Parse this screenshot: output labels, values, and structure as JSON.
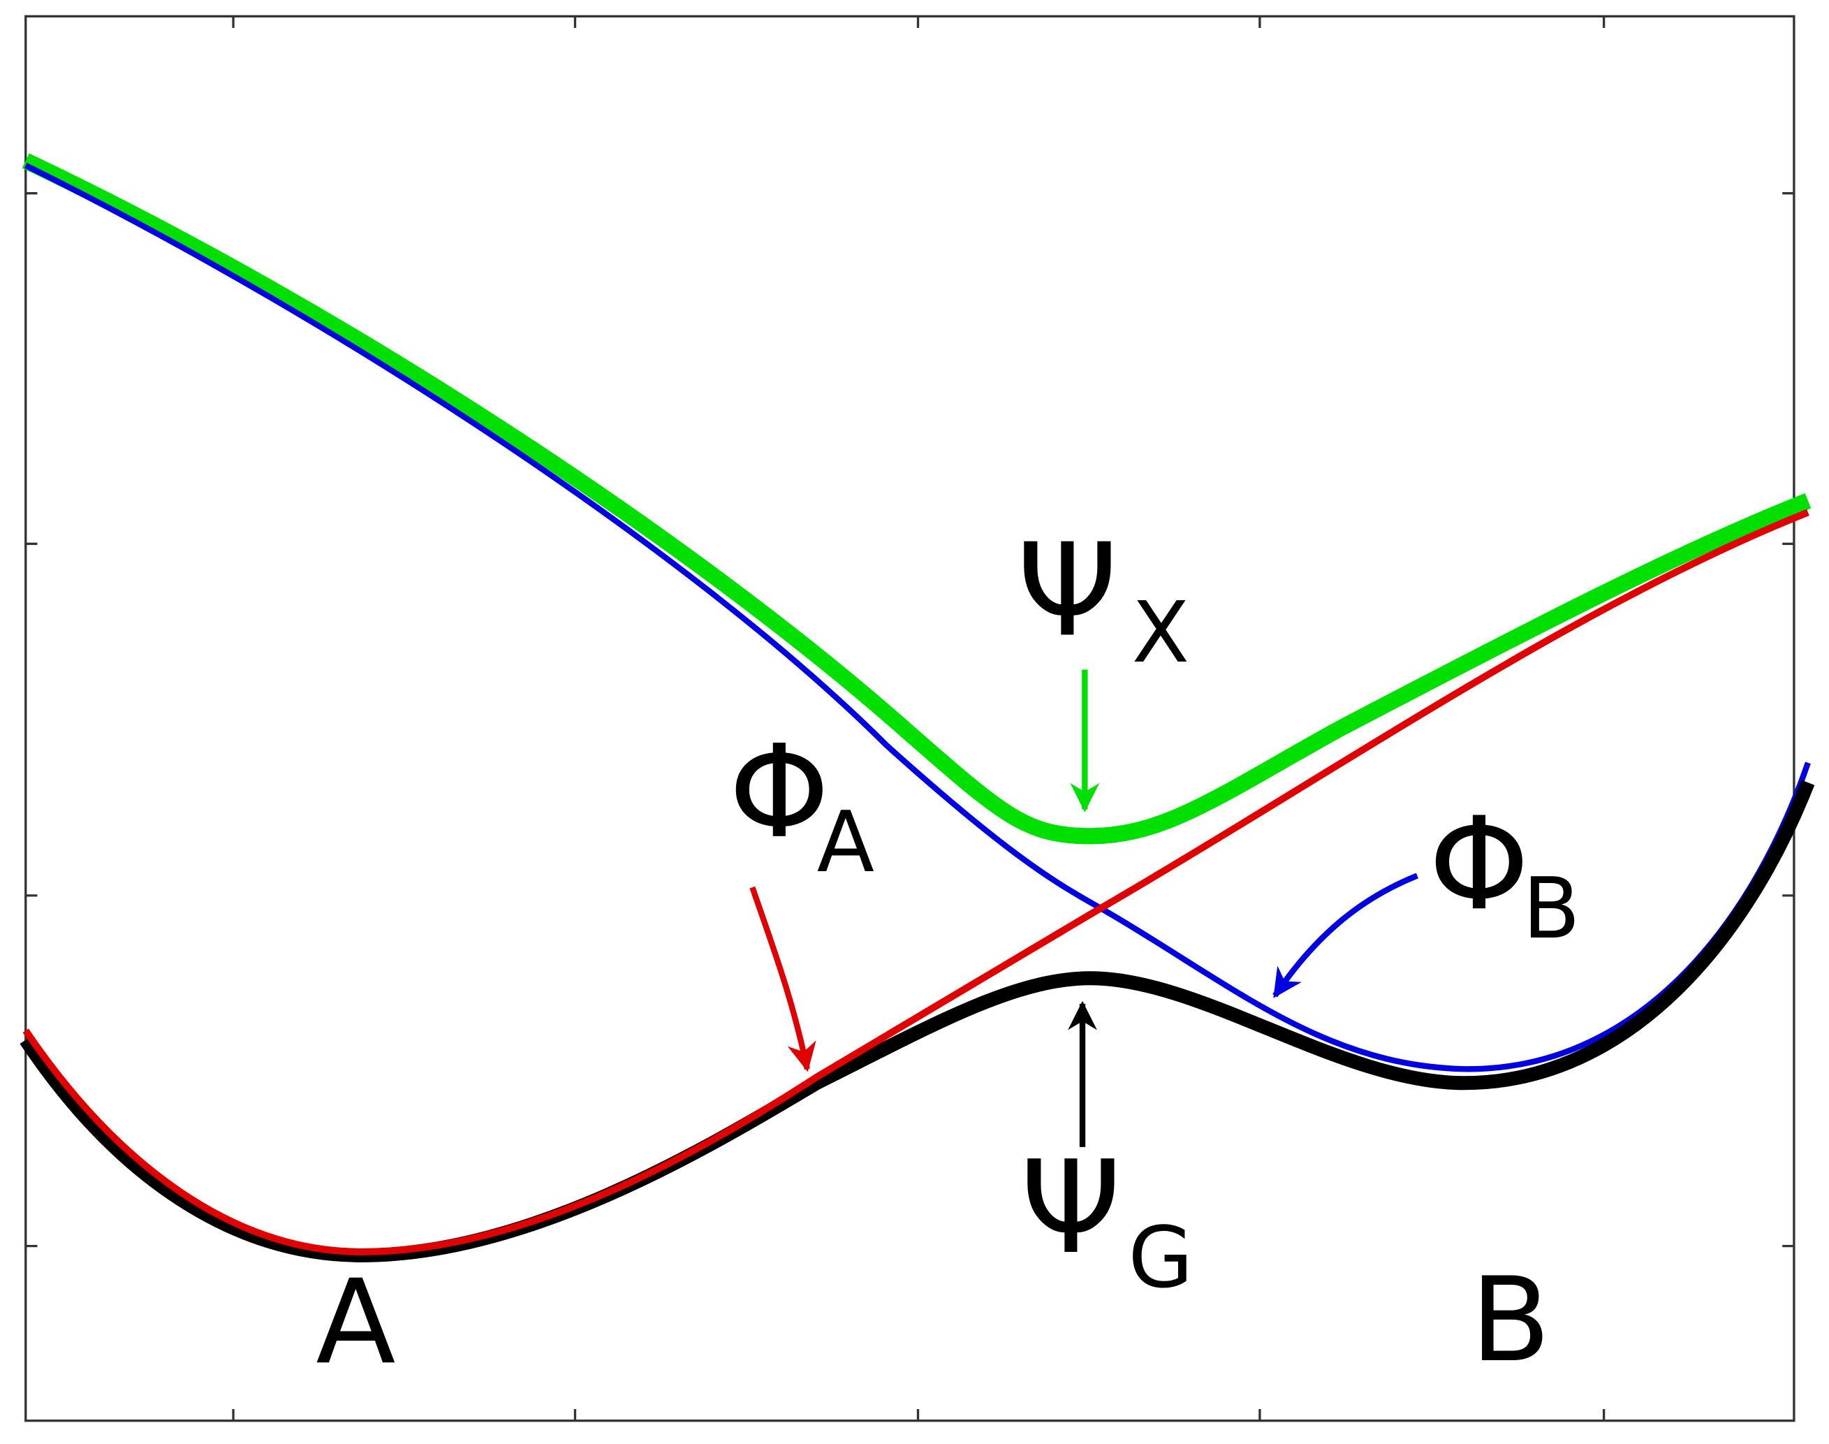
{
  "labels": [
    {
      "symbol": "Ψ",
      "subscript": "X"
    },
    {
      "symbol": "Φ",
      "subscript": "A"
    },
    {
      "symbol": "Φ",
      "subscript": "B"
    },
    {
      "symbol": "Ψ",
      "subscript": "G"
    }
  ],
  "minima": [
    "A",
    "B"
  ]
}
